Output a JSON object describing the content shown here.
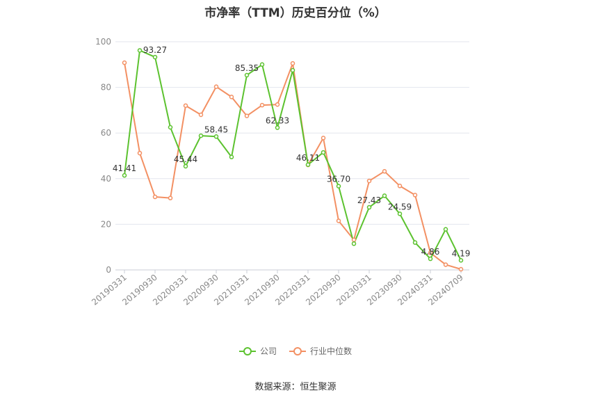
{
  "chart_data": {
    "type": "line",
    "title": "市净率（TTM）历史百分位（%）",
    "xlabel": "",
    "ylabel": "",
    "ylim": [
      0,
      100
    ],
    "yticks": [
      0,
      20,
      40,
      60,
      80,
      100
    ],
    "grid": true,
    "legend_position": "bottom",
    "categories": [
      "20190331",
      "20190630",
      "20190930",
      "20191231",
      "20200331",
      "20200630",
      "20200930",
      "20201231",
      "20210331",
      "20210630",
      "20210930",
      "20211231",
      "20220331",
      "20220630",
      "20220930",
      "20221231",
      "20230331",
      "20230630",
      "20230930",
      "20231231",
      "20240331",
      "20240630",
      "20240709"
    ],
    "x_tick_labels": [
      "20190331",
      "20190930",
      "20200331",
      "20200930",
      "20210331",
      "20210930",
      "20220331",
      "20220930",
      "20230331",
      "20230930",
      "20240331",
      "20240709"
    ],
    "series": [
      {
        "name": "公司",
        "color": "#5cc22f",
        "values": [
          41.41,
          96.2,
          93.27,
          62.5,
          45.44,
          58.8,
          58.45,
          49.5,
          85.35,
          90.0,
          62.33,
          87.5,
          46.11,
          51.5,
          36.7,
          11.5,
          27.43,
          32.5,
          24.59,
          12.0,
          4.86,
          17.8,
          4.19
        ]
      },
      {
        "name": "行业中位数",
        "color": "#f39063",
        "values": [
          90.8,
          51.2,
          32.0,
          31.5,
          72.0,
          68.0,
          80.3,
          75.8,
          67.5,
          72.2,
          72.5,
          90.5,
          46.0,
          57.8,
          21.5,
          13.2,
          39.0,
          43.2,
          36.8,
          32.8,
          7.5,
          2.3,
          0.3
        ]
      }
    ],
    "data_labels": [
      {
        "series": 0,
        "index": 0,
        "text": "41.41"
      },
      {
        "series": 0,
        "index": 2,
        "text": "93.27"
      },
      {
        "series": 0,
        "index": 4,
        "text": "45.44"
      },
      {
        "series": 0,
        "index": 6,
        "text": "58.45"
      },
      {
        "series": 0,
        "index": 8,
        "text": "85.35"
      },
      {
        "series": 0,
        "index": 10,
        "text": "62.33"
      },
      {
        "series": 0,
        "index": 12,
        "text": "46.11"
      },
      {
        "series": 0,
        "index": 14,
        "text": "36.70"
      },
      {
        "series": 0,
        "index": 16,
        "text": "27.43"
      },
      {
        "series": 0,
        "index": 18,
        "text": "24.59"
      },
      {
        "series": 0,
        "index": 20,
        "text": "4.86"
      },
      {
        "series": 0,
        "index": 22,
        "text": "4.19"
      }
    ]
  },
  "source": "数据来源：恒生聚源"
}
